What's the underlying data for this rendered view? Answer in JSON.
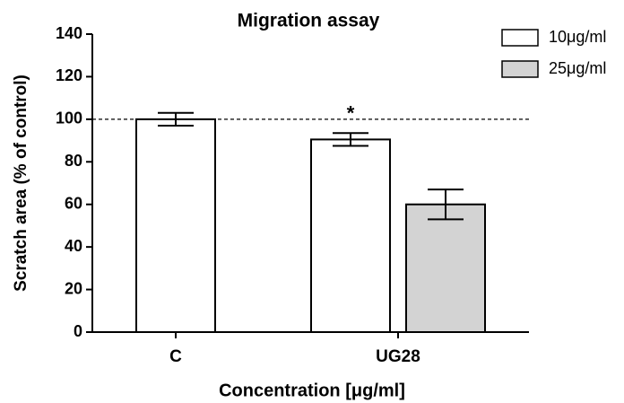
{
  "chart_data": {
    "type": "bar",
    "title": "Migration assay",
    "x_label": "Concentration [μg/ml]",
    "y_label": "Scratch area (% of control)",
    "categories": [
      "C",
      "UG28"
    ],
    "series": [
      {
        "name": "10μg/ml",
        "color": "#ffffff",
        "values": [
          100,
          90.5
        ],
        "errors": [
          3,
          3
        ]
      },
      {
        "name": "25μg/ml",
        "color": "#d3d3d3",
        "values": [
          null,
          60
        ],
        "errors": [
          null,
          7
        ]
      }
    ],
    "reference_line": 100,
    "annotation": "*",
    "ylim": [
      0,
      140
    ],
    "yticks": [
      0,
      20,
      40,
      60,
      80,
      100,
      120,
      140
    ],
    "legend": "top-right"
  }
}
